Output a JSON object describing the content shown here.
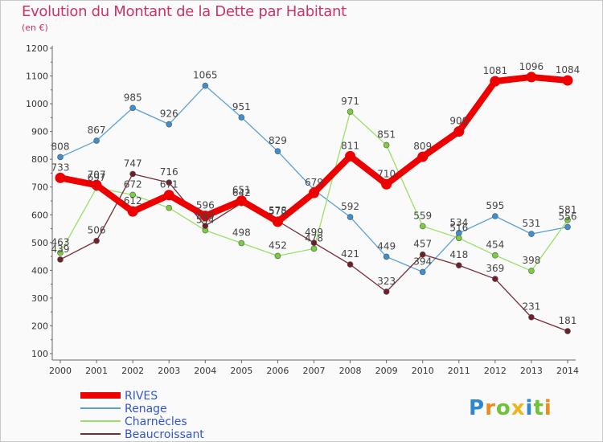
{
  "title": "Evolution du Montant de la Dette par Habitant",
  "unit": "(en €)",
  "logo": "Proxiti",
  "chart_data": {
    "type": "line",
    "title": "Evolution du Montant de la Dette par Habitant",
    "ylabel": "(en €)",
    "x": [
      "2000",
      "2001",
      "2002",
      "2003",
      "2004",
      "2005",
      "2006",
      "2007",
      "2008",
      "2009",
      "2010",
      "2011",
      "2012",
      "2013",
      "2014"
    ],
    "ylim": [
      100,
      1200
    ],
    "yticks": [
      100,
      200,
      300,
      400,
      500,
      600,
      700,
      800,
      900,
      1000,
      1100,
      1200
    ],
    "grid": false,
    "legend_position": "bottom-left",
    "series": [
      {
        "name": "RIVES",
        "color": "#ee0000",
        "marker_color": "#ee0000",
        "values": [
          733,
          707,
          612,
          671,
          596,
          651,
          575,
          679,
          811,
          710,
          809,
          900,
          1081,
          1096,
          1084
        ]
      },
      {
        "name": "Renage",
        "color": "#5aa0d6",
        "marker_color": "#3d8fd0",
        "values": [
          808,
          867,
          985,
          926,
          1065,
          951,
          829,
          690,
          592,
          449,
          394,
          534,
          595,
          531,
          556
        ]
      },
      {
        "name": "Charnècles",
        "color": "#99e066",
        "marker_color": "#7ccc3c",
        "values": [
          463,
          697,
          672,
          625,
          544,
          498,
          452,
          478,
          971,
          851,
          559,
          516,
          454,
          398,
          581
        ]
      },
      {
        "name": "Beaucroissant",
        "color": "#7a2a35",
        "marker_color": "#6e1f2a",
        "values": [
          439,
          506,
          747,
          716,
          560,
          642,
          578,
          499,
          421,
          323,
          457,
          418,
          369,
          231,
          181
        ]
      }
    ],
    "data_labels": {
      "RIVES": [
        "733",
        "707",
        "612",
        "671",
        "596",
        "651",
        "575",
        "679",
        "811",
        "710",
        "809",
        "900",
        "1081",
        "1096",
        "1084"
      ],
      "Renage": [
        "808",
        "867",
        "985",
        "926",
        "1065",
        "951",
        "829",
        "",
        "592",
        "449",
        "394",
        "534",
        "595",
        "531",
        "556"
      ],
      "Charnècles": [
        "463",
        "697",
        "672",
        "",
        "544",
        "498",
        "452",
        "478",
        "971",
        "851",
        "559",
        "516",
        "454",
        "398",
        "581"
      ],
      "Beaucroissant": [
        "439",
        "506",
        "747",
        "716",
        "560",
        "642",
        "578",
        "499",
        "421",
        "323",
        "457",
        "418",
        "369",
        "231",
        "181"
      ]
    }
  }
}
